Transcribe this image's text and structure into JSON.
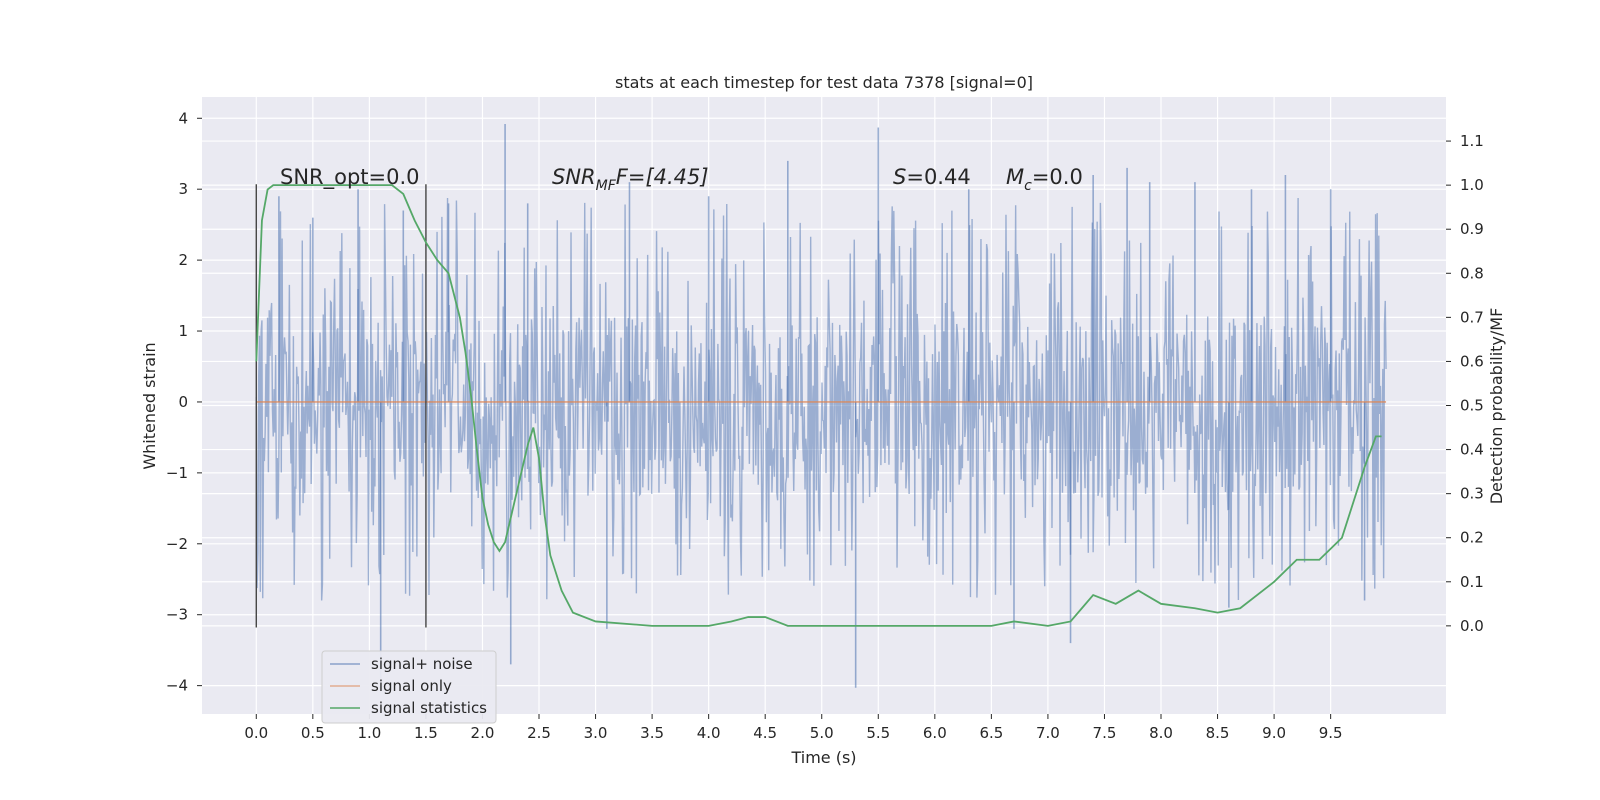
{
  "chart_data": {
    "type": "line",
    "title": "stats at each timestep for test data 7378 [signal=0]",
    "xlabel": "Time (s)",
    "ylabel_left": "Whitened strain",
    "ylabel_right": "Detection probability/MF",
    "xlim": [
      -0.48,
      10.52
    ],
    "ylim_left": [
      -4.4,
      4.3
    ],
    "ylim_right": [
      -0.2,
      1.2
    ],
    "x_ticks": [
      "0.0",
      "0.5",
      "1.0",
      "1.5",
      "2.0",
      "2.5",
      "3.0",
      "3.5",
      "4.0",
      "4.5",
      "5.0",
      "5.5",
      "6.0",
      "6.5",
      "7.0",
      "7.5",
      "8.0",
      "8.5",
      "9.0",
      "9.5"
    ],
    "y_left_ticks": [
      "4",
      "3",
      "2",
      "1",
      "0",
      "−1",
      "−2",
      "−3",
      "−4"
    ],
    "y_right_ticks": [
      "1.1",
      "1.0",
      "0.9",
      "0.8",
      "0.7",
      "0.6",
      "0.5",
      "0.4",
      "0.3",
      "0.2",
      "0.1",
      "0.0"
    ],
    "grid": true,
    "legend_position": "lower-left",
    "colors": {
      "noise": "#4c72b0",
      "signal": "#dd8452",
      "stats": "#55a868",
      "background": "#eaeaf2",
      "grid": "#ffffff",
      "vlines": "#444444"
    },
    "annotations": {
      "snr_opt": "SNR_opt=0.0",
      "snr_mf_main": "SNR",
      "snr_mf_sub": "MF",
      "snr_mf_rest": "F=[4.45]",
      "s_main": "S",
      "s_rest": "=0.44",
      "mc_main": "M",
      "mc_sub": "c",
      "mc_rest": "=0.0"
    },
    "vertical_lines_x": [
      0.0,
      1.5
    ],
    "vertical_lines_y_range": [
      -3.18,
      3.07
    ],
    "series": [
      {
        "name": "signal+ noise",
        "kind": "noise_band",
        "x_start": 0.0,
        "x_end": 9.99,
        "band_low": -1.3,
        "band_high": 1.2,
        "peak_max": 3.92,
        "peak_min": -4.03,
        "peak_points": [
          [
            0.2,
            2.9
          ],
          [
            0.5,
            2.6
          ],
          [
            0.9,
            3.0
          ],
          [
            1.1,
            -3.9
          ],
          [
            1.3,
            2.7
          ],
          [
            1.7,
            2.8
          ],
          [
            2.2,
            3.92
          ],
          [
            2.25,
            -3.7
          ],
          [
            2.4,
            2.8
          ],
          [
            3.1,
            -3.2
          ],
          [
            3.3,
            3.1
          ],
          [
            4.0,
            2.9
          ],
          [
            4.7,
            3.4
          ],
          [
            5.3,
            -4.03
          ],
          [
            5.5,
            3.87
          ],
          [
            6.3,
            3.0
          ],
          [
            6.7,
            -3.2
          ],
          [
            7.2,
            -3.4
          ],
          [
            7.4,
            3.2
          ],
          [
            7.7,
            3.3
          ],
          [
            7.9,
            3.1
          ],
          [
            8.3,
            3.1
          ],
          [
            8.6,
            -2.9
          ],
          [
            8.8,
            3.0
          ],
          [
            9.1,
            3.2
          ],
          [
            9.5,
            3.0
          ],
          [
            9.8,
            -2.8
          ]
        ]
      },
      {
        "name": "signal only",
        "kind": "flat",
        "x": [
          0.0,
          9.99
        ],
        "y": [
          0.0,
          0.0
        ]
      },
      {
        "name": "signal statistics",
        "kind": "line_right_axis",
        "x": [
          0.0,
          0.05,
          0.1,
          0.15,
          0.2,
          0.3,
          0.5,
          0.8,
          1.0,
          1.2,
          1.3,
          1.4,
          1.5,
          1.6,
          1.7,
          1.8,
          1.85,
          1.9,
          1.95,
          2.0,
          2.05,
          2.1,
          2.15,
          2.2,
          2.3,
          2.4,
          2.45,
          2.5,
          2.55,
          2.6,
          2.7,
          2.8,
          3.0,
          3.5,
          4.0,
          4.2,
          4.35,
          4.5,
          4.7,
          5.0,
          5.5,
          6.0,
          6.5,
          6.7,
          7.0,
          7.2,
          7.3,
          7.4,
          7.6,
          7.8,
          8.0,
          8.3,
          8.5,
          8.7,
          9.0,
          9.2,
          9.4,
          9.6,
          9.8,
          9.9,
          9.95
        ],
        "y": [
          0.6,
          0.92,
          0.99,
          1.0,
          1.0,
          1.0,
          1.0,
          1.0,
          1.0,
          1.0,
          0.98,
          0.92,
          0.87,
          0.83,
          0.8,
          0.7,
          0.62,
          0.52,
          0.4,
          0.29,
          0.23,
          0.19,
          0.17,
          0.19,
          0.3,
          0.41,
          0.45,
          0.38,
          0.25,
          0.16,
          0.08,
          0.03,
          0.01,
          0.0,
          0.0,
          0.01,
          0.02,
          0.02,
          0.0,
          0.0,
          0.0,
          0.0,
          0.0,
          0.01,
          0.0,
          0.01,
          0.04,
          0.07,
          0.05,
          0.08,
          0.05,
          0.04,
          0.03,
          0.04,
          0.1,
          0.15,
          0.15,
          0.2,
          0.36,
          0.43,
          0.43
        ]
      }
    ]
  }
}
